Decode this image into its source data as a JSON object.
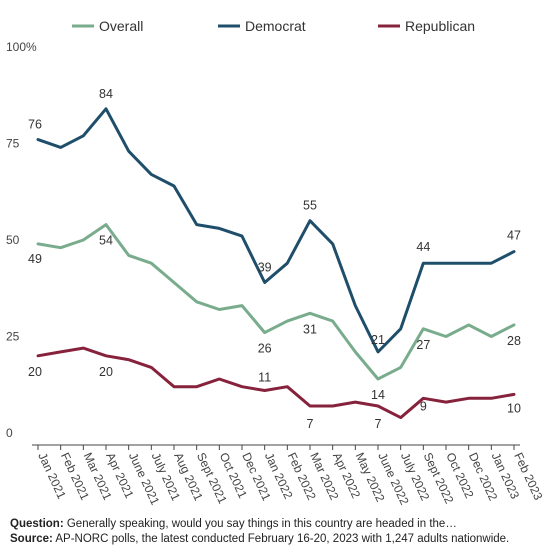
{
  "chart_data": {
    "type": "line",
    "categories": [
      "Jan 2021",
      "Feb 2021",
      "Mar 2021",
      "Apr 2021",
      "June 2021",
      "July 2021",
      "Aug 2021",
      "Sept 2021",
      "Oct 2021",
      "Dec 2021",
      "Jan 2022",
      "Feb 2022",
      "Mar 2022",
      "Apr 2022",
      "May 2022",
      "June 2022",
      "July 2022",
      "Sept 2022",
      "Oct 2022",
      "Dec 2022",
      "Jan 2023",
      "Feb 2023"
    ],
    "series": [
      {
        "name": "Overall",
        "color": "#79ac8c",
        "values": [
          49,
          48,
          50,
          54,
          46,
          44,
          39,
          34,
          32,
          33,
          26,
          29,
          31,
          29,
          21,
          14,
          17,
          27,
          25,
          28,
          25,
          28
        ]
      },
      {
        "name": "Democrat",
        "color": "#1f4e6b",
        "values": [
          76,
          74,
          77,
          84,
          73,
          67,
          64,
          54,
          53,
          51,
          39,
          44,
          55,
          49,
          33,
          21,
          27,
          44,
          44,
          44,
          44,
          47
        ]
      },
      {
        "name": "Republican",
        "color": "#87223c",
        "values": [
          20,
          21,
          22,
          20,
          19,
          17,
          12,
          12,
          14,
          12,
          11,
          12,
          7,
          7,
          8,
          7,
          4,
          9,
          8,
          9,
          9,
          10
        ]
      }
    ],
    "yticks": [
      "0",
      "25",
      "50",
      "75",
      "100%"
    ],
    "ylim": [
      0,
      100
    ],
    "grid": false,
    "legend_position": "top",
    "data_labels": {
      "Overall": [
        {
          "i": 0,
          "text": "49"
        },
        {
          "i": 3,
          "text": "54"
        },
        {
          "i": 10,
          "text": "26"
        },
        {
          "i": 12,
          "text": "31"
        },
        {
          "i": 15,
          "text": "14"
        },
        {
          "i": 17,
          "text": "27"
        },
        {
          "i": 21,
          "text": "28"
        }
      ],
      "Democrat": [
        {
          "i": 0,
          "text": "76"
        },
        {
          "i": 3,
          "text": "84"
        },
        {
          "i": 10,
          "text": "39"
        },
        {
          "i": 12,
          "text": "55"
        },
        {
          "i": 15,
          "text": "21"
        },
        {
          "i": 17,
          "text": "44"
        },
        {
          "i": 21,
          "text": "47"
        }
      ],
      "Republican": [
        {
          "i": 0,
          "text": "20"
        },
        {
          "i": 3,
          "text": "20"
        },
        {
          "i": 10,
          "text": "11"
        },
        {
          "i": 12,
          "text": "7"
        },
        {
          "i": 15,
          "text": "7"
        },
        {
          "i": 17,
          "text": "9"
        },
        {
          "i": 21,
          "text": "10"
        }
      ]
    }
  },
  "footer": {
    "question_label": "Question:",
    "question_text": " Generally speaking, would you say things in this country are headed in the…",
    "source_label": "Source:",
    "source_text": " AP-NORC polls, the latest conducted February 16-20, 2023 with 1,247 adults nationwide."
  }
}
